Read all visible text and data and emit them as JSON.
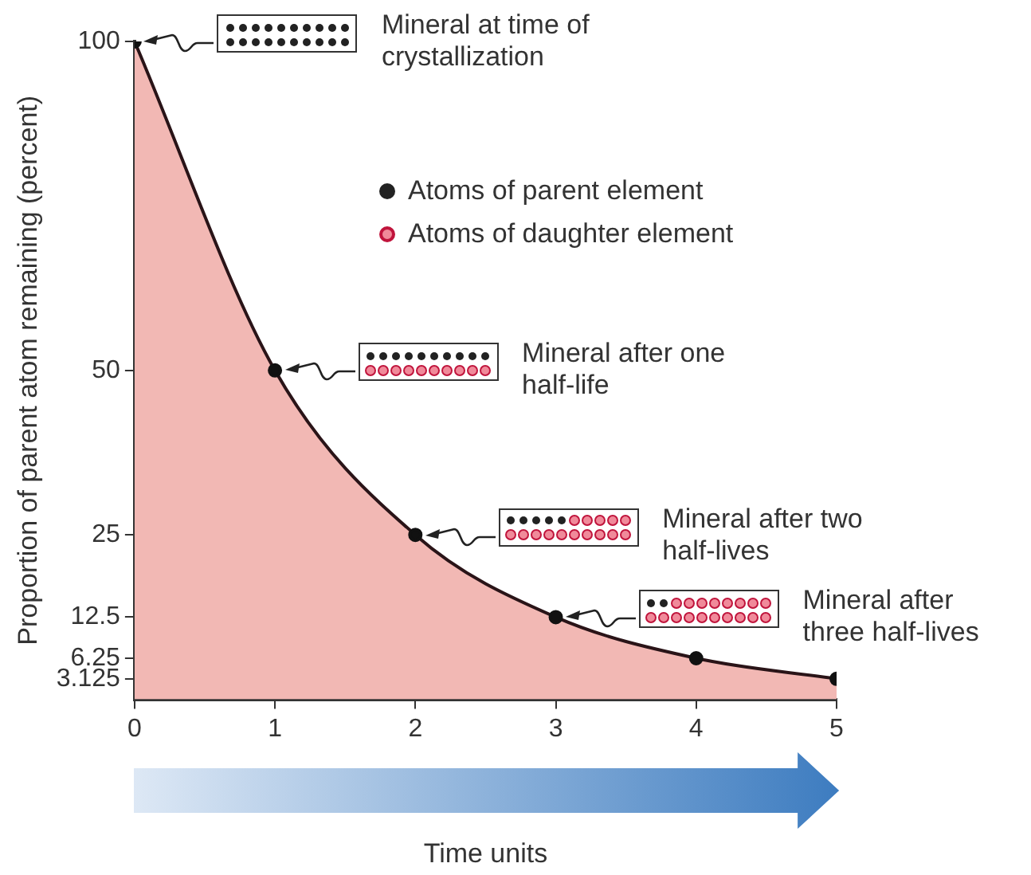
{
  "chart_data": {
    "type": "area",
    "ylabel": "Proportion of parent atom remaining (percent)",
    "xlabel": "Time units",
    "x": [
      0,
      1,
      2,
      3,
      4,
      5
    ],
    "values": [
      100,
      50,
      25,
      12.5,
      6.25,
      3.125
    ],
    "color": "#f2b8b4",
    "xlim": [
      0,
      5
    ],
    "xticks": [
      0,
      1,
      2,
      3,
      4,
      5
    ],
    "ylim": [
      0,
      100
    ],
    "yticks": [
      3.125,
      6.25,
      12.5,
      25,
      50,
      100
    ],
    "marker": "circle",
    "grid": false,
    "legend": false,
    "annotations": [
      "Mineral at time of crystallization",
      "Mineral after one half-life",
      "Mineral after two half-lives",
      "Mineral after three half-lives",
      "Atoms of parent element",
      "Atoms of daughter element"
    ]
  }
}
